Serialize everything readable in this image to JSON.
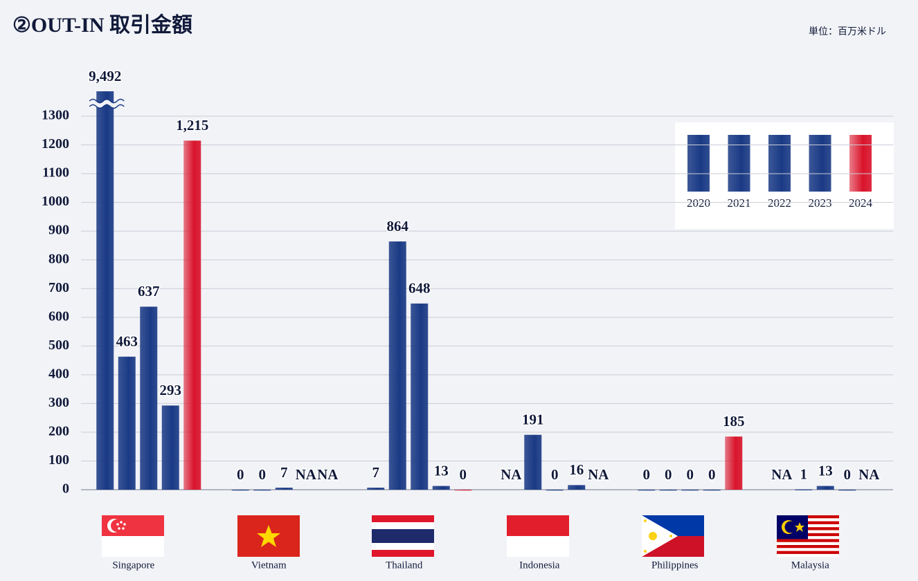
{
  "title": "②OUT-IN 取引金額",
  "unit_note": "単位：百万米ドル",
  "chart_data": {
    "type": "bar",
    "categories": [
      "Singapore",
      "Vietnam",
      "Thailand",
      "Indonesia",
      "Philippines",
      "Malaysia"
    ],
    "series": [
      {
        "name": "2020",
        "color": "#1a3a85",
        "values": [
          9492,
          0,
          7,
          null,
          0,
          null
        ],
        "value_labels": [
          "9,492",
          "0",
          "7",
          "NA",
          "0",
          "NA"
        ]
      },
      {
        "name": "2021",
        "color": "#1a3a85",
        "values": [
          463,
          0,
          864,
          191,
          0,
          1
        ],
        "value_labels": [
          "463",
          "0",
          "864",
          "191",
          "0",
          "1"
        ]
      },
      {
        "name": "2022",
        "color": "#1a3a85",
        "values": [
          637,
          7,
          648,
          0,
          0,
          13
        ],
        "value_labels": [
          "637",
          "7",
          "648",
          "0",
          "0",
          "13"
        ]
      },
      {
        "name": "2023",
        "color": "#1a3a85",
        "values": [
          293,
          null,
          13,
          16,
          0,
          0
        ],
        "value_labels": [
          "293",
          "NA",
          "13",
          "16",
          "0",
          "0"
        ]
      },
      {
        "name": "2024",
        "color": "#d9142b",
        "values": [
          1215,
          null,
          0,
          null,
          185,
          null
        ],
        "value_labels": [
          "1,215",
          "NA",
          "0",
          "NA",
          "185",
          "NA"
        ]
      }
    ],
    "ylim": [
      0,
      1300
    ],
    "yticks": [
      0,
      100,
      200,
      300,
      400,
      500,
      600,
      700,
      800,
      900,
      1000,
      1100,
      1200,
      1300
    ],
    "grid": true,
    "legend": "upper right"
  }
}
